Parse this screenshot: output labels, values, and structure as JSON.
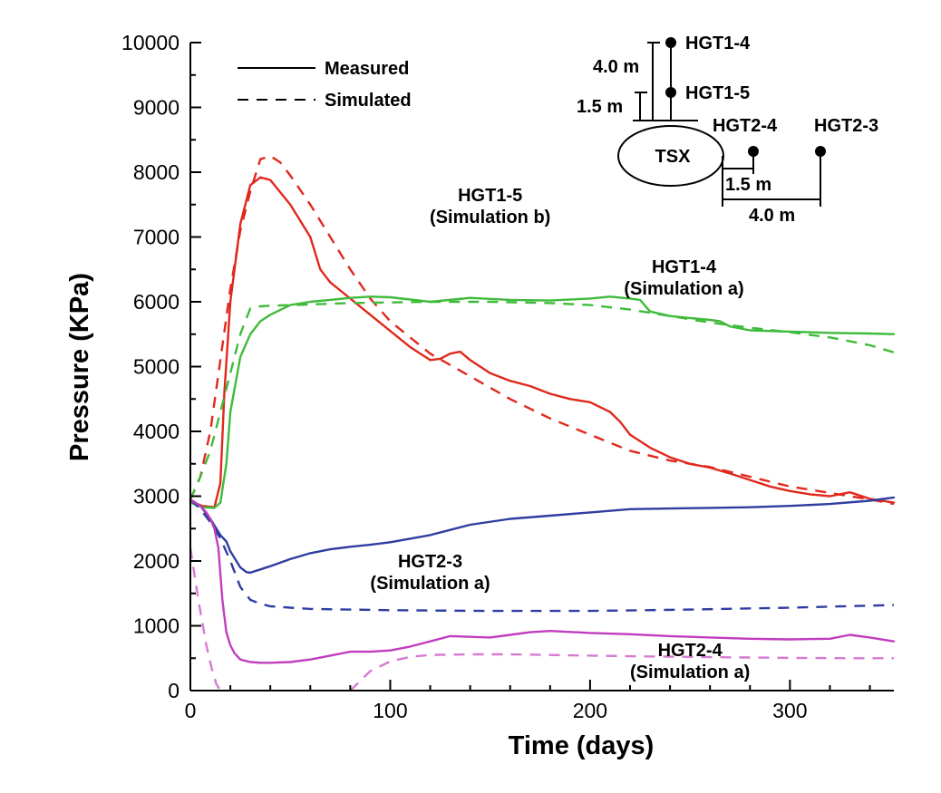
{
  "chart_data": {
    "type": "line",
    "xlabel": "Time (days)",
    "ylabel": "Pressure (KPa)",
    "xlim": [
      0,
      352
    ],
    "ylim": [
      0,
      10000
    ],
    "xticks": [
      0,
      100,
      200,
      300
    ],
    "yticks": [
      0,
      1000,
      2000,
      3000,
      4000,
      5000,
      6000,
      7000,
      8000,
      9000,
      10000
    ],
    "legend": [
      {
        "label": "Measured",
        "style": "solid"
      },
      {
        "label": "Simulated",
        "style": "dashed"
      }
    ],
    "series": [
      {
        "color": "#e0281c",
        "style": "solid",
        "x": [
          0,
          6,
          12,
          15,
          17,
          20,
          25,
          30,
          35,
          40,
          50,
          60,
          65,
          70,
          80,
          90,
          100,
          110,
          120,
          125,
          130,
          135,
          140,
          150,
          160,
          170,
          180,
          190,
          200,
          210,
          215,
          220,
          230,
          240,
          250,
          260,
          270,
          280,
          290,
          300,
          310,
          320,
          330,
          340,
          352
        ],
        "y": [
          2920,
          2850,
          2830,
          3200,
          4600,
          6000,
          7200,
          7800,
          7920,
          7880,
          7500,
          7000,
          6500,
          6300,
          6050,
          5800,
          5550,
          5300,
          5100,
          5120,
          5200,
          5230,
          5100,
          4900,
          4780,
          4700,
          4580,
          4500,
          4450,
          4300,
          4150,
          3950,
          3750,
          3600,
          3500,
          3440,
          3350,
          3250,
          3150,
          3080,
          3030,
          3000,
          3060,
          2960,
          2900
        ]
      },
      {
        "color": "#e0281c",
        "style": "dashed",
        "x": [
          0,
          5,
          10,
          15,
          20,
          25,
          30,
          35,
          40,
          45,
          50,
          60,
          70,
          80,
          90,
          100,
          120,
          140,
          160,
          180,
          200,
          220,
          240,
          260,
          280,
          300,
          320,
          340,
          352
        ],
        "y": [
          2950,
          3300,
          4000,
          5100,
          6200,
          7100,
          7700,
          8200,
          8250,
          8150,
          7950,
          7500,
          7000,
          6500,
          6050,
          5700,
          5200,
          4850,
          4500,
          4200,
          3950,
          3700,
          3550,
          3450,
          3300,
          3150,
          3050,
          2950,
          2880
        ]
      },
      {
        "color": "#3fbb3b",
        "style": "solid",
        "x": [
          0,
          6,
          12,
          15,
          18,
          20,
          25,
          30,
          35,
          40,
          50,
          60,
          70,
          80,
          90,
          100,
          120,
          140,
          160,
          180,
          200,
          210,
          220,
          225,
          230,
          240,
          250,
          260,
          265,
          270,
          280,
          300,
          320,
          340,
          352
        ],
        "y": [
          2900,
          2830,
          2820,
          2900,
          3500,
          4300,
          5150,
          5500,
          5700,
          5800,
          5950,
          6000,
          6030,
          6060,
          6080,
          6070,
          6000,
          6060,
          6030,
          6020,
          6050,
          6080,
          6050,
          6030,
          5850,
          5780,
          5750,
          5720,
          5700,
          5620,
          5560,
          5540,
          5520,
          5510,
          5500
        ]
      },
      {
        "color": "#3fbb3b",
        "style": "dashed",
        "x": [
          0,
          5,
          10,
          15,
          20,
          25,
          30,
          35,
          40,
          50,
          60,
          80,
          100,
          120,
          150,
          180,
          200,
          220,
          240,
          260,
          280,
          300,
          320,
          340,
          352
        ],
        "y": [
          2950,
          3300,
          3700,
          4300,
          4900,
          5500,
          5900,
          5930,
          5940,
          5950,
          5960,
          5980,
          5990,
          6000,
          6000,
          5980,
          5950,
          5880,
          5780,
          5680,
          5600,
          5530,
          5450,
          5330,
          5220
        ]
      },
      {
        "color": "#2f3da0",
        "style": "solid",
        "x": [
          0,
          5,
          10,
          15,
          18,
          20,
          25,
          28,
          30,
          35,
          40,
          50,
          60,
          70,
          80,
          90,
          100,
          120,
          140,
          160,
          180,
          200,
          220,
          240,
          260,
          280,
          300,
          320,
          340,
          352
        ],
        "y": [
          2950,
          2850,
          2650,
          2400,
          2300,
          2150,
          1900,
          1830,
          1820,
          1870,
          1920,
          2030,
          2120,
          2180,
          2220,
          2250,
          2290,
          2400,
          2560,
          2650,
          2700,
          2750,
          2800,
          2810,
          2820,
          2830,
          2850,
          2880,
          2930,
          2980
        ]
      },
      {
        "color": "#2f3da0",
        "style": "dashed",
        "x": [
          0,
          5,
          10,
          15,
          20,
          25,
          30,
          35,
          40,
          50,
          60,
          80,
          100,
          150,
          200,
          250,
          300,
          352
        ],
        "y": [
          2950,
          2800,
          2600,
          2350,
          2000,
          1600,
          1400,
          1340,
          1300,
          1280,
          1260,
          1250,
          1240,
          1230,
          1230,
          1250,
          1280,
          1320
        ]
      },
      {
        "color": "#c13dbf",
        "style": "solid",
        "x": [
          0,
          5,
          8,
          10,
          12,
          14,
          16,
          18,
          20,
          22,
          25,
          30,
          35,
          40,
          50,
          60,
          70,
          80,
          90,
          100,
          110,
          120,
          130,
          140,
          150,
          160,
          170,
          180,
          200,
          220,
          240,
          260,
          280,
          300,
          320,
          330,
          340,
          352
        ],
        "y": [
          2950,
          2850,
          2750,
          2650,
          2500,
          2200,
          1400,
          900,
          700,
          580,
          480,
          440,
          430,
          430,
          440,
          480,
          540,
          600,
          600,
          620,
          680,
          760,
          840,
          830,
          820,
          860,
          900,
          920,
          890,
          870,
          840,
          820,
          800,
          790,
          800,
          860,
          820,
          760
        ]
      },
      {
        "color": "#d67ad2",
        "style": "dashed",
        "x": [
          0,
          4,
          8,
          11,
          13,
          15
        ],
        "y": [
          2200,
          1400,
          700,
          300,
          100,
          0
        ]
      },
      {
        "color": "#d67ad2",
        "style": "dashed",
        "x": [
          80,
          85,
          90,
          100,
          110,
          120,
          140,
          160,
          180,
          200,
          220,
          250,
          280,
          300,
          330,
          352
        ],
        "y": [
          0,
          150,
          300,
          450,
          520,
          550,
          560,
          560,
          550,
          540,
          530,
          520,
          510,
          505,
          500,
          500
        ]
      }
    ],
    "annotations": [
      {
        "lines": [
          "HGT1-5",
          "(Simulation b)"
        ],
        "x": 150,
        "y": 7550
      },
      {
        "lines": [
          "HGT1-4",
          "(Simulation a)"
        ],
        "x": 247,
        "y": 6450
      },
      {
        "lines": [
          "HGT2-3",
          "(Simulation a)"
        ],
        "x": 120,
        "y": 1900
      },
      {
        "lines": [
          "HGT2-4",
          "(Simulation a)"
        ],
        "x": 250,
        "y": 530
      }
    ]
  },
  "schematic": {
    "tsx_label": "TSX",
    "sensors": [
      "HGT1-4",
      "HGT1-5",
      "HGT2-4",
      "HGT2-3"
    ],
    "dim_4m_vertical": "4.0 m",
    "dim_15m_vertical": "1.5 m",
    "dim_15m_horizontal": "1.5 m",
    "dim_4m_horizontal": "4.0 m"
  }
}
